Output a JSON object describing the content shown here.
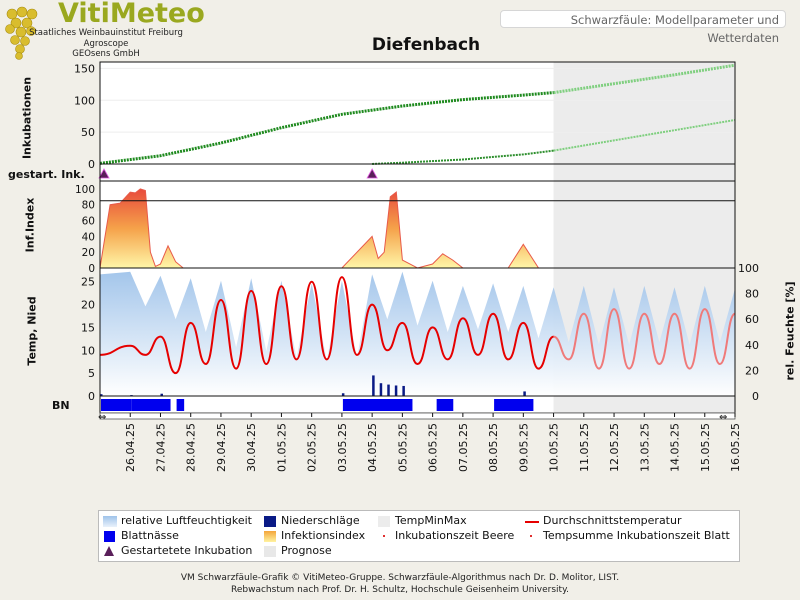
{
  "header": {
    "logo": "VitiMeteo",
    "org_lines": [
      "Staatliches Weinbauinstitut Freiburg",
      "Agroscope",
      "GEOsens GmbH"
    ],
    "model_label": "Schwarzfäule: Modellparameter und Wetterdaten"
  },
  "chart_data": {
    "type": "line",
    "title": "Diefenbach",
    "dates": [
      "26.04.25",
      "27.04.25",
      "28.04.25",
      "29.04.25",
      "30.04.25",
      "01.05.25",
      "02.05.25",
      "03.05.25",
      "04.05.25",
      "05.05.25",
      "06.05.25",
      "07.05.25",
      "08.05.25",
      "09.05.25",
      "10.05.25",
      "11.05.25",
      "12.05.25",
      "13.05.25",
      "14.05.25",
      "15.05.25",
      "16.05.25"
    ],
    "x_range": [
      "25.04.25",
      "16.05.25"
    ],
    "forecast_start": "10.05.25",
    "panels": [
      {
        "name": "Inkubationen",
        "ylabel": "Inkubationen",
        "ylim": [
          0,
          160
        ],
        "yticks": [
          0,
          50,
          100,
          150
        ],
        "grid": true,
        "series": [
          {
            "name": "Tempsumme Inkubationszeit Blatt",
            "x": [
              "25.04.25",
              "27.04.25",
              "29.04.25",
              "01.05.25",
              "03.05.25",
              "05.05.25",
              "07.05.25",
              "09.05.25",
              "10.05.25",
              "12.05.25",
              "14.05.25",
              "16.05.25"
            ],
            "y": [
              1,
              13,
              33,
              57,
              78,
              91,
              101,
              108,
              112,
              126,
              140,
              155
            ]
          },
          {
            "name": "Inkubationszeit Beere",
            "x": [
              "04.05.25",
              "05.05.25",
              "07.05.25",
              "09.05.25",
              "10.05.25",
              "12.05.25",
              "14.05.25",
              "16.05.25"
            ],
            "y": [
              0,
              2,
              7,
              15,
              21,
              37,
              53,
              69
            ]
          }
        ]
      },
      {
        "name": "gestart. Ink.",
        "ylabel": "gestart. Ink.",
        "series": [
          {
            "name": "Gestartetete Inkubation",
            "x": [
              "25.04.25",
              "04.05.25"
            ]
          }
        ]
      },
      {
        "name": "Inf.Index",
        "ylabel": "Inf.Index",
        "ylim": [
          0,
          110
        ],
        "yticks": [
          0,
          20,
          40,
          60,
          80,
          100
        ],
        "threshold": 85,
        "series": [
          {
            "name": "Infektionsindex",
            "x": [
              "25.04.25",
              "25.04.25",
              "25.04.25",
              "26.04.25",
              "26.04.25",
              "26.04.25",
              "26.04.25",
              "26.04.25",
              "26.04.25",
              "27.04.25",
              "27.04.25",
              "27.04.25",
              "27.04.25",
              "03.05.25",
              "04.05.25",
              "04.05.25",
              "04.05.25",
              "04.05.25",
              "04.05.25",
              "05.05.25",
              "05.05.25",
              "06.05.25",
              "06.05.25",
              "06.05.25",
              "07.05.25",
              "07.05.25",
              "08.05.25",
              "08.05.25",
              "09.05.25",
              "09.05.25"
            ],
            "y": [
              0,
              80,
              82,
              96,
              95,
              100,
              98,
              20,
              2,
              5,
              28,
              8,
              0,
              0,
              40,
              12,
              20,
              90,
              96,
              10,
              0,
              5,
              18,
              10,
              0,
              0,
              0,
              0,
              30,
              0
            ]
          }
        ]
      },
      {
        "name": "Temp, Nied",
        "ylabel": "Temp, Nied",
        "ylim": [
          0,
          28
        ],
        "yticks": [
          0,
          5,
          10,
          15,
          20,
          25
        ],
        "y2label": "rel. Feuchte [%]",
        "y2lim": [
          0,
          100
        ],
        "y2ticks": [
          0,
          20,
          40,
          60,
          80,
          100
        ],
        "series": [
          {
            "name": "Durchschnittstemperatur",
            "x": [
              "25.04.25",
              "26.04.25",
              "26.04.25",
              "27.04.25",
              "27.04.25",
              "28.04.25",
              "28.04.25",
              "29.04.25",
              "29.04.25",
              "30.04.25",
              "30.04.25",
              "01.05.25",
              "01.05.25",
              "02.05.25",
              "02.05.25",
              "03.05.25",
              "03.05.25",
              "04.05.25",
              "04.05.25",
              "05.05.25",
              "05.05.25",
              "06.05.25",
              "06.05.25",
              "07.05.25",
              "07.05.25",
              "08.05.25",
              "08.05.25",
              "09.05.25",
              "09.05.25",
              "10.05.25",
              "10.05.25",
              "11.05.25",
              "11.05.25",
              "12.05.25",
              "12.05.25",
              "13.05.25",
              "13.05.25",
              "14.05.25",
              "14.05.25",
              "15.05.25",
              "15.05.25",
              "16.05.25"
            ],
            "y": [
              9,
              11,
              9,
              13,
              5,
              16,
              7,
              21,
              6,
              23,
              7,
              24,
              8,
              25,
              8,
              26,
              9,
              20,
              10,
              16,
              7,
              15,
              8,
              17,
              9,
              18,
              8,
              16,
              6,
              13,
              8,
              18,
              6,
              19,
              6,
              18,
              7,
              18,
              6,
              19,
              7,
              18
            ]
          },
          {
            "name": "relative Luftfeuchtigkeit",
            "axis": "right",
            "x": [
              "25.04.25",
              "26.04.25",
              "26.04.25",
              "27.04.25",
              "27.04.25",
              "28.04.25",
              "28.04.25",
              "29.04.25",
              "29.04.25",
              "30.04.25",
              "30.04.25",
              "01.05.25",
              "01.05.25",
              "02.05.25",
              "02.05.25",
              "03.05.25",
              "03.05.25",
              "04.05.25",
              "04.05.25",
              "05.05.25",
              "05.05.25",
              "06.05.25",
              "06.05.25",
              "07.05.25",
              "07.05.25",
              "08.05.25",
              "08.05.25",
              "09.05.25",
              "09.05.25",
              "10.05.25",
              "10.05.25",
              "11.05.25",
              "11.05.25",
              "12.05.25",
              "12.05.25",
              "13.05.25",
              "13.05.25",
              "14.05.25",
              "14.05.25",
              "15.05.25",
              "15.05.25",
              "16.05.25"
            ],
            "y": [
              95,
              97,
              70,
              94,
              60,
              92,
              50,
              90,
              38,
              92,
              35,
              90,
              30,
              88,
              28,
              90,
              30,
              95,
              60,
              97,
              55,
              90,
              50,
              86,
              52,
              88,
              50,
              86,
              45,
              85,
              42,
              86,
              40,
              85,
              40,
              86,
              42,
              85,
              40,
              86,
              42,
              84
            ]
          },
          {
            "name": "Niederschläge",
            "x": [
              "25.04.25",
              "26.04.25",
              "27.04.25",
              "03.05.25",
              "04.05.25",
              "04.05.25",
              "04.05.25",
              "04.05.25",
              "05.05.25",
              "09.05.25"
            ],
            "y": [
              0.4,
              0.2,
              0.5,
              0.6,
              4.5,
              2.8,
              2.5,
              2.3,
              2.2,
              1.0
            ]
          }
        ]
      },
      {
        "name": "BN",
        "ylabel": "BN",
        "series": [
          {
            "name": "Blattnässe",
            "intervals": [
              [
                "25.04.25",
                "26.04.25"
              ],
              [
                "26.04.25",
                "27.04.25"
              ],
              [
                "27.04.25",
                "27.04.25"
              ],
              [
                "03.05.25",
                "04.05.25"
              ],
              [
                "04.05.25",
                "05.05.25"
              ],
              [
                "06.05.25",
                "06.05.25"
              ],
              [
                "08.05.25",
                "09.05.25"
              ]
            ]
          }
        ]
      }
    ],
    "legend": [
      {
        "name": "relative Luftfeuchtigkeit",
        "color": "#9fc3ea",
        "kind": "fill"
      },
      {
        "name": "Niederschläge",
        "color": "#0a1a86",
        "kind": "box"
      },
      {
        "name": "TempMinMax",
        "color": "#ececec",
        "kind": "box"
      },
      {
        "name": "Durchschnittstemperatur",
        "color": "#e60000",
        "kind": "line"
      },
      {
        "name": "Blattnässe",
        "color": "#0000ee",
        "kind": "box"
      },
      {
        "name": "Infektionsindex",
        "color": "#f3a53a",
        "kind": "gradient"
      },
      {
        "name": "Inkubationszeit Beere",
        "color": "#e03030",
        "kind": "dot"
      },
      {
        "name": "Tempsumme Inkubationszeit Blatt",
        "color": "#e03030",
        "kind": "dot"
      },
      {
        "name": "Gestartetete Inkubation",
        "color": "#5a1f5a",
        "kind": "triangle"
      },
      {
        "name": "Prognose",
        "color": "#e8e8e8",
        "kind": "box"
      }
    ],
    "colors": {
      "incubation_leaf": "#1e8a1e",
      "incubation_berry": "#2e8f2e",
      "temperature": "#e60000",
      "humidity": "#9fc3ea",
      "precipitation": "#0a1a86",
      "leaf_wetness": "#0000ee",
      "forecast_bg": "#ececec"
    }
  },
  "footer": {
    "line1": "VM Schwarzfäule-Grafik © VitiMeteo-Gruppe. Schwarzfäule-Algorithmus nach Dr. D. Molitor, LIST.",
    "line2": "Rebwachstum nach Prof. Dr. H. Schultz, Hochschule Geisenheim University."
  }
}
